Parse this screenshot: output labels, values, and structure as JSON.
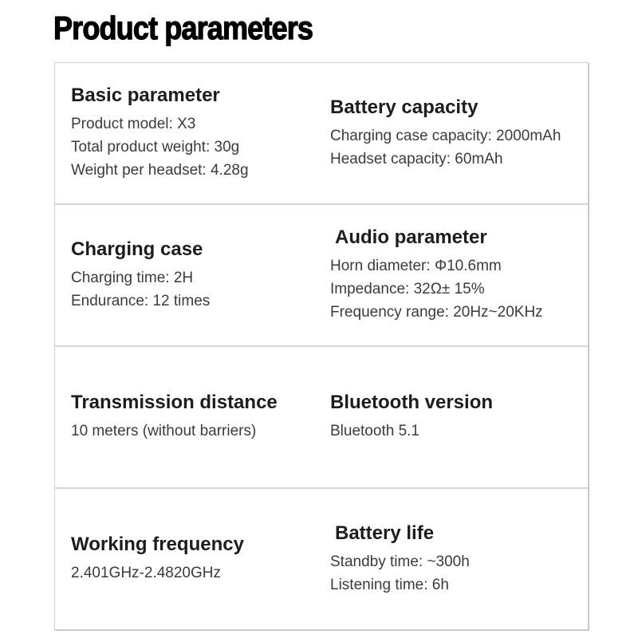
{
  "page": {
    "title": "Product parameters"
  },
  "colors": {
    "background": "#ffffff",
    "title_text": "#000000",
    "heading_text": "#1d1d1d",
    "body_text": "#3b3b3b",
    "card_border": "#cfcfcf",
    "divider": "#d6d6d6"
  },
  "card": {
    "rows": [
      {
        "cells": [
          {
            "heading": "Basic parameter",
            "lines": [
              "Product model: X3",
              "Total product weight: 30g",
              "Weight per headset: 4.28g"
            ]
          },
          {
            "heading": "Battery capacity",
            "lines": [
              "Charging case capacity: 2000mAh",
              "Headset capacity: 60mAh"
            ]
          }
        ]
      },
      {
        "cells": [
          {
            "heading": "Charging case",
            "lines": [
              "Charging time: 2H",
              "Endurance: 12 times"
            ]
          },
          {
            "heading": "Audio parameter",
            "lines": [
              "Horn diameter: Φ10.6mm",
              "Impedance: 32Ω± 15%",
              "Frequency range: 20Hz~20KHz"
            ]
          }
        ]
      },
      {
        "cells": [
          {
            "heading": "Transmission distance",
            "lines": [
              "10 meters (without barriers)"
            ]
          },
          {
            "heading": "Bluetooth version",
            "lines": [
              "Bluetooth 5.1"
            ]
          }
        ]
      },
      {
        "cells": [
          {
            "heading": "Working frequency",
            "lines": [
              "2.401GHz-2.4820GHz"
            ]
          },
          {
            "heading": "Battery life",
            "lines": [
              "Standby time: ~300h",
              "Listening time: 6h"
            ]
          }
        ]
      }
    ]
  }
}
